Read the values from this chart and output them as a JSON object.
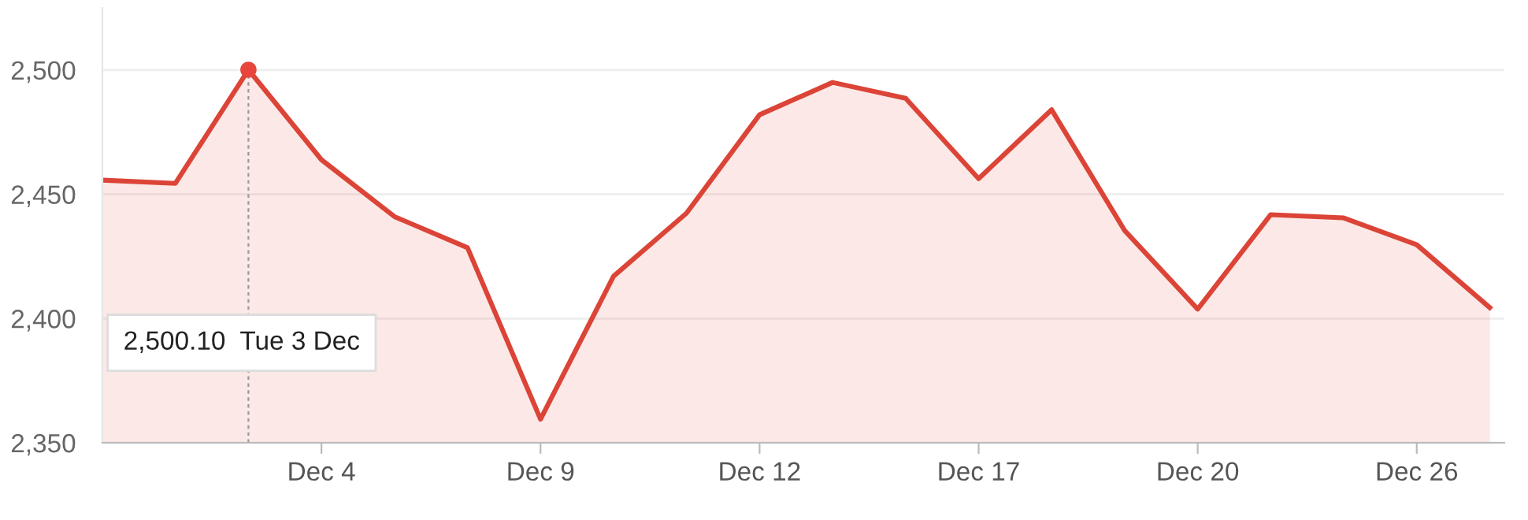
{
  "chart_data": {
    "type": "area",
    "categories": [
      null,
      null,
      null,
      "Dec 4",
      null,
      null,
      "Dec 9",
      null,
      null,
      "Dec 12",
      null,
      null,
      "Dec 17",
      null,
      null,
      "Dec 20",
      null,
      null,
      "Dec 26",
      null
    ],
    "series": [
      {
        "color": "#db4437",
        "values": [
          2455.7,
          2454.4,
          2500.1,
          2463.9,
          2441,
          2428.5,
          2359.5,
          2417,
          2442.4,
          2482,
          2495,
          2488.6,
          2456.3,
          2484,
          2435.4,
          2403.8,
          2441.8,
          2440.5,
          2429.7,
          2404.4
        ]
      },
      {
        "type": "scatter",
        "marker": "circle",
        "color": "#e8453c",
        "values": [
          null,
          null,
          2500.1,
          null,
          null,
          null,
          null,
          null,
          null,
          null,
          null,
          null,
          null,
          null,
          null,
          null,
          null,
          null,
          null,
          null
        ]
      }
    ],
    "ylim": [
      2350,
      2525
    ],
    "yticks": [
      {
        "value": 2350,
        "label": "2,350"
      },
      {
        "value": 2400,
        "label": "2,400"
      },
      {
        "value": 2450,
        "label": "2,450"
      },
      {
        "value": 2500,
        "label": "2,500"
      }
    ],
    "grid": "y",
    "legend": false,
    "marker": "none",
    "line_style": "solid",
    "annotations": [
      "2,500.10  Tue 3 Dec"
    ]
  }
}
